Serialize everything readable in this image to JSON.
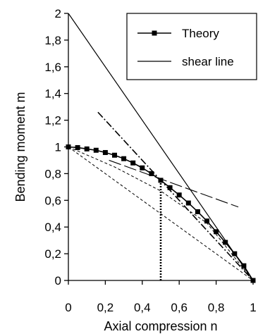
{
  "chart_data": {
    "type": "line",
    "xlabel": "Axial compression n",
    "ylabel": "Bending moment m",
    "xlim": [
      0,
      1
    ],
    "ylim": [
      0,
      2
    ],
    "x_ticks": [
      0,
      0.2,
      0.4,
      0.6,
      0.8,
      1
    ],
    "x_tick_labels": [
      "0",
      "0,2",
      "0,4",
      "0,6",
      "0,8",
      "1"
    ],
    "y_ticks": [
      0,
      0.2,
      0.4,
      0.6,
      0.8,
      1,
      1.2,
      1.4,
      1.6,
      1.8,
      2
    ],
    "y_tick_labels": [
      "0",
      "0,2",
      "0,4",
      "0,6",
      "0,8",
      "1",
      "1,2",
      "1,4",
      "1,6",
      "1,8",
      "2"
    ],
    "grid": false,
    "legend_position": "top-right",
    "series": [
      {
        "name": "Theory",
        "style": "solid-square-markers",
        "color": "#000000",
        "x": [
          0,
          0.05,
          0.1,
          0.15,
          0.2,
          0.25,
          0.3,
          0.35,
          0.4,
          0.45,
          0.5,
          0.55,
          0.6,
          0.65,
          0.7,
          0.75,
          0.8,
          0.85,
          0.9,
          0.95,
          1
        ],
        "y": [
          1,
          0.995,
          0.985,
          0.975,
          0.958,
          0.938,
          0.912,
          0.88,
          0.843,
          0.8,
          0.75,
          0.695,
          0.64,
          0.58,
          0.515,
          0.445,
          0.365,
          0.285,
          0.2,
          0.11,
          0
        ]
      },
      {
        "name": "shear line",
        "style": "solid-thin",
        "color": "#000000",
        "x": [
          0,
          1
        ],
        "y": [
          2,
          0
        ]
      },
      {
        "style": "dash-dot",
        "color": "#000000",
        "x": [
          0.16,
          1
        ],
        "y": [
          1.26,
          0
        ]
      },
      {
        "style": "long-dash",
        "color": "#000000",
        "x": [
          0.22,
          0.92
        ],
        "y": [
          0.9,
          0.55
        ]
      },
      {
        "style": "dashed",
        "color": "#000000",
        "x": [
          0,
          1
        ],
        "y": [
          1,
          0
        ]
      },
      {
        "style": "dashed",
        "color": "#000000",
        "x": [
          0,
          0.25,
          0.5,
          0.75,
          1
        ],
        "y": [
          1,
          0.85,
          0.67,
          0.43,
          0
        ]
      },
      {
        "style": "dotted-thick",
        "color": "#000000",
        "x": [
          0.5,
          0.5
        ],
        "y": [
          0,
          0.75
        ]
      }
    ]
  }
}
